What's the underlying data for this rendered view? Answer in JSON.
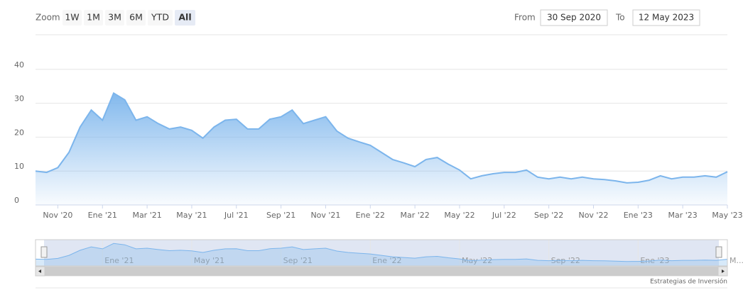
{
  "ui": {
    "zoom": "Zoom",
    "buttons": [
      "1W",
      "1M",
      "3M",
      "6M",
      "YTD",
      "All"
    ],
    "selected": "All",
    "from_label": "From",
    "from": "30 Sep 2020",
    "to_label": "To",
    "to": "12 May 2023",
    "credit": "Estrategias de Inversión"
  },
  "chart_data": {
    "type": "area",
    "categories": [
      null,
      null,
      "Nov '20",
      null,
      null,
      null,
      "Ene '21",
      null,
      null,
      null,
      "Mar '21",
      null,
      null,
      null,
      "May '21",
      null,
      null,
      null,
      "Jul '21",
      null,
      null,
      null,
      "Sep '21",
      null,
      null,
      null,
      "Nov '21",
      null,
      null,
      null,
      "Ene '22",
      null,
      null,
      null,
      "Mar '22",
      null,
      null,
      null,
      "May '22",
      null,
      null,
      null,
      "Jul '22",
      null,
      null,
      null,
      "Sep '22",
      null,
      null,
      null,
      "Nov '22",
      null,
      null,
      null,
      "Ene '23",
      null,
      null,
      null,
      "Mar '23",
      null,
      null,
      null,
      "May '23"
    ],
    "series": [
      {
        "color": "#7cb5ec",
        "values": [
          10,
          9.6,
          11,
          15.5,
          23,
          28,
          25,
          33,
          31,
          25,
          26,
          24,
          22.4,
          23,
          22,
          19.7,
          23,
          25,
          25.3,
          22.4,
          22.4,
          25.3,
          26,
          28,
          24,
          25,
          26,
          21.8,
          19.7,
          18.6,
          17.6,
          15.5,
          13.4,
          12.4,
          11.3,
          13.4,
          14,
          12,
          10.3,
          7.7,
          8.6,
          9.2,
          9.6,
          9.6,
          10.3,
          8.2,
          7.7,
          8.2,
          7.7,
          8.2,
          7.7,
          7.5,
          7.1,
          6.5,
          6.7,
          7.3,
          8.6,
          7.7,
          8.2,
          8.2,
          8.6,
          8.2,
          9.8
        ]
      }
    ],
    "ylim": [
      0,
      50
    ],
    "yticks": [
      0,
      10,
      20,
      30,
      40
    ],
    "grid": true,
    "navigator": {
      "categories": [
        null,
        null,
        null,
        null,
        null,
        null,
        "Ene '21",
        null,
        null,
        null,
        null,
        null,
        null,
        null,
        "May '21",
        null,
        null,
        null,
        null,
        null,
        null,
        null,
        "Sep '21",
        null,
        null,
        null,
        null,
        null,
        null,
        null,
        "Ene '22",
        null,
        null,
        null,
        null,
        null,
        null,
        null,
        "May '22",
        null,
        null,
        null,
        null,
        null,
        null,
        null,
        "Sep '22",
        null,
        null,
        null,
        null,
        null,
        null,
        null,
        "Ene '23",
        null,
        null,
        null,
        null,
        null,
        null,
        null,
        "M..."
      ]
    }
  }
}
